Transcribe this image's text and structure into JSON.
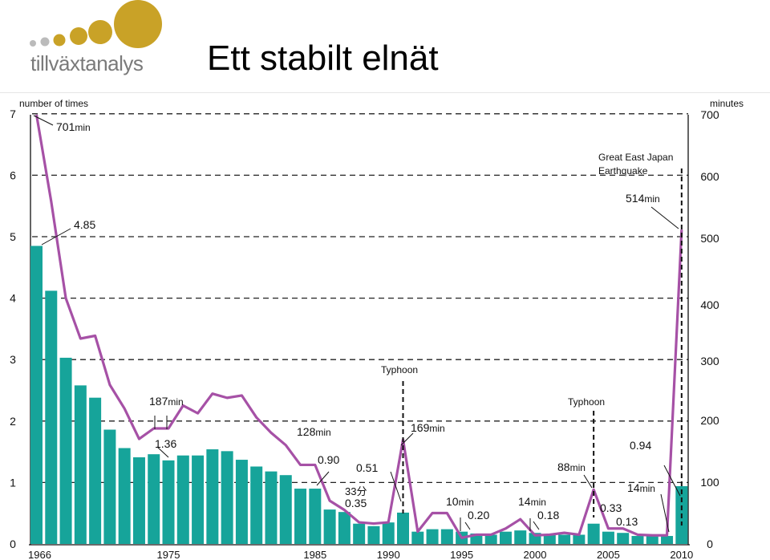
{
  "header": {
    "brand": "tillväxtanalys",
    "title": "Ett stabilt elnät"
  },
  "colors": {
    "bar": "#16A49A",
    "line": "#A651A6",
    "logo_gold": "#C9A227",
    "logo_gray": "#AAAAAA"
  },
  "icons": {
    "logo": "gold-circles-logo"
  },
  "chart_data": {
    "type": "bar+line",
    "left_axis": {
      "label": "number of times",
      "ticks": [
        "0",
        "1",
        "2",
        "3",
        "4",
        "5",
        "6",
        "7"
      ],
      "ylim": [
        0,
        7
      ]
    },
    "right_axis": {
      "label": "minutes",
      "ticks": [
        "0",
        "100",
        "200",
        "300",
        "400",
        "500",
        "600",
        "700"
      ]
    },
    "x_ticks": [
      "1966",
      "1975",
      "1985",
      "1990",
      "1995",
      "2000",
      "2005",
      "2010"
    ],
    "x_tick_years": [
      1966,
      1975,
      1985,
      1990,
      1995,
      2000,
      2005,
      2010
    ],
    "grid": "dashed horizontal",
    "bars": {
      "years": [
        1966,
        1967,
        1968,
        1969,
        1970,
        1971,
        1972,
        1973,
        1974,
        1975,
        1976,
        1977,
        1978,
        1979,
        1980,
        1981,
        1982,
        1983,
        1984,
        1985,
        1986,
        1987,
        1988,
        1989,
        1990,
        1991,
        1992,
        1993,
        1994,
        1995,
        1996,
        1997,
        1998,
        1999,
        2000,
        2001,
        2002,
        2003,
        2004,
        2005,
        2006,
        2007,
        2008,
        2009,
        2010
      ],
      "values": [
        4.85,
        4.12,
        3.03,
        2.58,
        2.38,
        1.86,
        1.56,
        1.41,
        1.46,
        1.36,
        1.44,
        1.44,
        1.54,
        1.51,
        1.37,
        1.26,
        1.18,
        1.12,
        0.9,
        0.9,
        0.56,
        0.52,
        0.33,
        0.29,
        0.35,
        0.51,
        0.2,
        0.24,
        0.24,
        0.2,
        0.17,
        0.15,
        0.2,
        0.22,
        0.18,
        0.16,
        0.15,
        0.15,
        0.33,
        0.2,
        0.18,
        0.13,
        0.14,
        0.13,
        0.94
      ]
    },
    "line": {
      "name": "minutes",
      "values": [
        701,
        560,
        410,
        340,
        345,
        260,
        220,
        170,
        187,
        187,
        225,
        212,
        245,
        238,
        242,
        205,
        180,
        160,
        128,
        128,
        70,
        55,
        35,
        33,
        35,
        169,
        20,
        50,
        50,
        10,
        15,
        15,
        25,
        40,
        14,
        15,
        18,
        15,
        88,
        25,
        25,
        15,
        14,
        14,
        514
      ]
    },
    "annotations": [
      {
        "text": "701",
        "unit": "min"
      },
      {
        "text": "4.85"
      },
      {
        "text": "187",
        "unit": "min"
      },
      {
        "text": "1.36"
      },
      {
        "text": "128",
        "unit": "min"
      },
      {
        "text": "0.90"
      },
      {
        "text": "0.51"
      },
      {
        "text": "33分"
      },
      {
        "text": "0.35"
      },
      {
        "text": "Typhoon"
      },
      {
        "text": "169",
        "unit": "min"
      },
      {
        "text": "10",
        "unit": "min"
      },
      {
        "text": "0.20"
      },
      {
        "text": "14",
        "unit": "min"
      },
      {
        "text": "0.18"
      },
      {
        "text": "Typhoon"
      },
      {
        "text": "88",
        "unit": "min"
      },
      {
        "text": "0.33"
      },
      {
        "text": "0.13"
      },
      {
        "text": "14",
        "unit": "min"
      },
      {
        "text": "0.94"
      },
      {
        "text": "514",
        "unit": "min"
      },
      {
        "text": "Great East Japan Earthquake"
      }
    ]
  }
}
